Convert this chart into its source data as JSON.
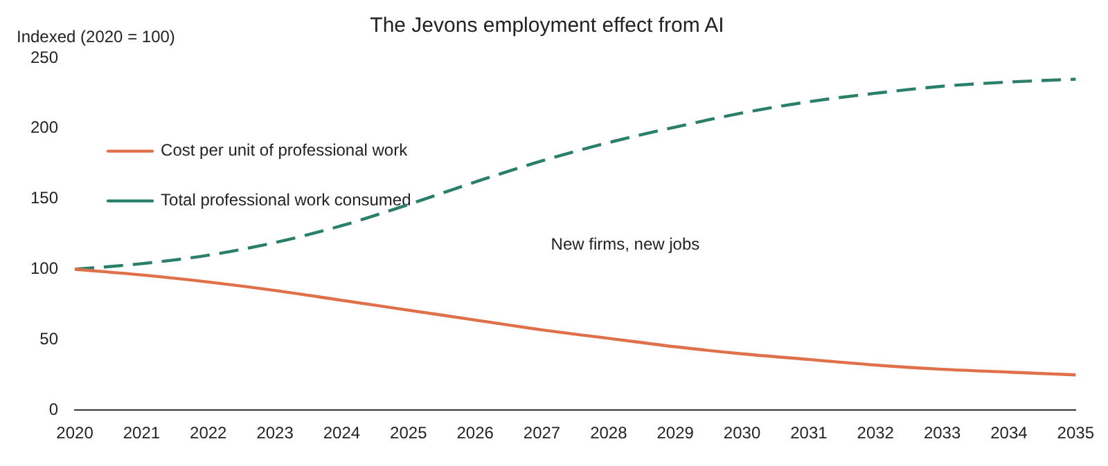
{
  "chart_data": {
    "type": "line",
    "title": "The Jevons employment effect from AI",
    "ylabel": "Indexed (2020 = 100)",
    "categories": [
      "2020",
      "2021",
      "2022",
      "2023",
      "2024",
      "2025",
      "2026",
      "2027",
      "2028",
      "2029",
      "2030",
      "2031",
      "2032",
      "2033",
      "2034",
      "2035"
    ],
    "series": [
      {
        "name": "Cost per unit of professional work",
        "color": "#e0704a",
        "line_style": "solid",
        "values": [
          100,
          96,
          91,
          85,
          78,
          71,
          64,
          57,
          51,
          45,
          40,
          36,
          32,
          29,
          27,
          25
        ]
      },
      {
        "name": "Total professional work consumed",
        "color": "#2a7f6a",
        "line_style": "dashed",
        "values": [
          100,
          104,
          110,
          119,
          131,
          146,
          162,
          177,
          190,
          201,
          211,
          219,
          225,
          230,
          233,
          235
        ]
      }
    ],
    "ylim": [
      0,
      250
    ],
    "yticks": [
      0,
      50,
      100,
      150,
      200,
      250
    ],
    "grid": false,
    "legend": "top",
    "marker": "none",
    "annotations": [
      "New firms, new jobs"
    ]
  }
}
